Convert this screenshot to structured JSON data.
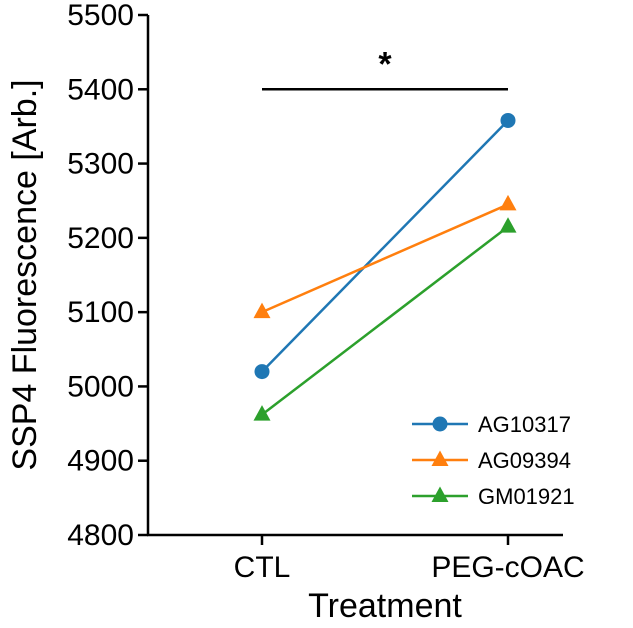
{
  "chart_data": {
    "type": "line",
    "title": "",
    "xlabel": "Treatment",
    "ylabel": "SSP4 Fluorescence [Arb.]",
    "categories": [
      "CTL",
      "PEG-cOAC"
    ],
    "ylim": [
      4800,
      5500
    ],
    "yticks": [
      4800,
      4900,
      5000,
      5100,
      5200,
      5300,
      5400,
      5500
    ],
    "grid": false,
    "legend_position": "bottom-right",
    "series": [
      {
        "name": "AG10317",
        "values": [
          5020,
          5358
        ],
        "color": "#1f77b4",
        "marker": "circle"
      },
      {
        "name": "AG09394",
        "values": [
          5100,
          5245
        ],
        "color": "#ff7f0e",
        "marker": "triangle"
      },
      {
        "name": "GM01921",
        "values": [
          4962,
          5215
        ],
        "color": "#2ca02c",
        "marker": "triangle"
      }
    ],
    "annotations": [
      {
        "type": "significance-bar",
        "from": "CTL",
        "to": "PEG-cOAC",
        "y": 5400,
        "label": "*"
      }
    ]
  }
}
